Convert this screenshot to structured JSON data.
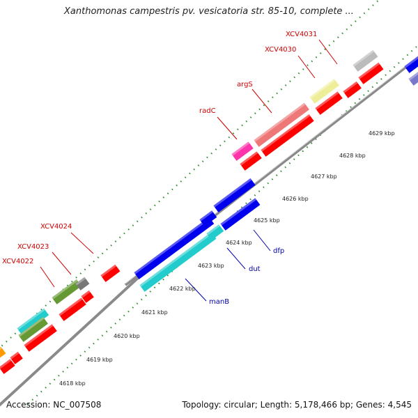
{
  "title": "Xanthomonas campestris pv. vesicatoria str. 85-10, complete ...",
  "footer": {
    "accession": "Accession: NC_007508",
    "summary": "Topology: circular; Length: 5,178,466 bp; Genes: 4,545"
  },
  "colors": {
    "backbone": "#888888",
    "tick": "#2e8b2e",
    "forward_label": "#cc0000",
    "reverse_label": "#0000aa"
  },
  "kbp_ticks": [
    "4618 kbp",
    "4619 kbp",
    "4620 kbp",
    "4621 kbp",
    "4622 kbp",
    "4623 kbp",
    "4624 kbp",
    "4625 kbp",
    "4626 kbp",
    "4627 kbp",
    "4628 kbp",
    "4629 kbp"
  ],
  "gene_labels": [
    {
      "name": "XCV4022",
      "strand": "forward"
    },
    {
      "name": "XCV4023",
      "strand": "forward"
    },
    {
      "name": "XCV4024",
      "strand": "forward"
    },
    {
      "name": "radC",
      "strand": "forward"
    },
    {
      "name": "argS",
      "strand": "forward"
    },
    {
      "name": "XCV4030",
      "strand": "forward"
    },
    {
      "name": "XCV4031",
      "strand": "forward"
    },
    {
      "name": "manB",
      "strand": "reverse"
    },
    {
      "name": "dut",
      "strand": "reverse"
    },
    {
      "name": "dfp",
      "strand": "reverse"
    }
  ]
}
